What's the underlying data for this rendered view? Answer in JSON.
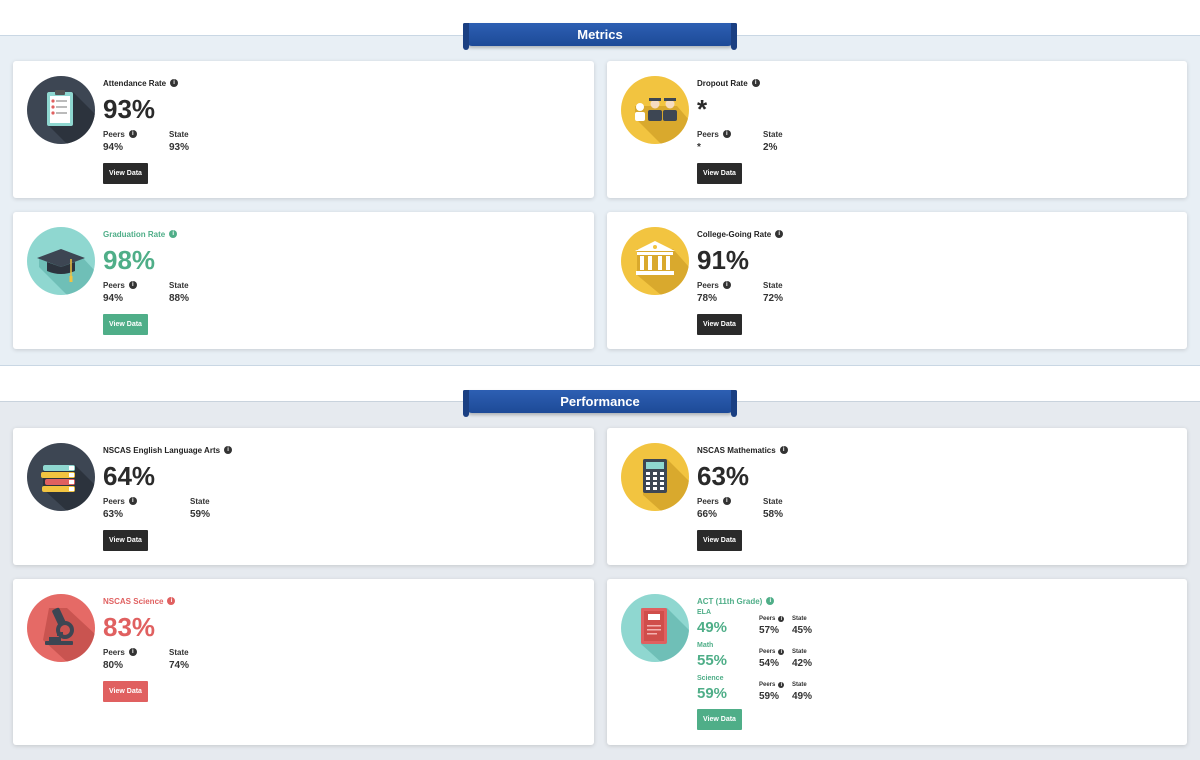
{
  "sections": {
    "metrics": {
      "label": "Metrics"
    },
    "performance": {
      "label": "Performance"
    }
  },
  "common": {
    "peers_label": "Peers",
    "state_label": "State",
    "view_data_label": "View Data"
  },
  "cards": {
    "attendance": {
      "title": "Attendance Rate",
      "value": "93%",
      "peers": "94%",
      "state": "93%",
      "icon": "clipboard-icon"
    },
    "dropout": {
      "title": "Dropout Rate",
      "value": "*",
      "peers": "*",
      "state": "2%",
      "icon": "graduates-icon"
    },
    "graduation": {
      "title": "Graduation Rate",
      "value": "98%",
      "peers": "94%",
      "state": "88%",
      "icon": "mortarboard-icon"
    },
    "college": {
      "title": "College-Going Rate",
      "value": "91%",
      "peers": "78%",
      "state": "72%",
      "icon": "building-icon"
    },
    "ela": {
      "title": "NSCAS English Language Arts",
      "value": "64%",
      "peers": "63%",
      "state": "59%",
      "icon": "books-icon"
    },
    "math": {
      "title": "NSCAS Mathematics",
      "value": "63%",
      "peers": "66%",
      "state": "58%",
      "icon": "calculator-icon"
    },
    "science": {
      "title": "NSCAS Science",
      "value": "83%",
      "peers": "80%",
      "state": "74%",
      "icon": "microscope-icon"
    },
    "act": {
      "title": "ACT (11th Grade)",
      "icon": "act-book-icon",
      "rows": [
        {
          "subject": "ELA",
          "value": "49%",
          "peers": "57%",
          "state": "45%"
        },
        {
          "subject": "Math",
          "value": "55%",
          "peers": "54%",
          "state": "42%"
        },
        {
          "subject": "Science",
          "value": "59%",
          "peers": "59%",
          "state": "49%"
        }
      ]
    }
  },
  "colors": {
    "ribbon": "#1f4d9c",
    "green": "#4fae88",
    "red": "#e06060",
    "dark": "#2a2a2a",
    "yellow": "#f2c440",
    "teal": "#8fd7d0",
    "slate": "#3d4653"
  }
}
